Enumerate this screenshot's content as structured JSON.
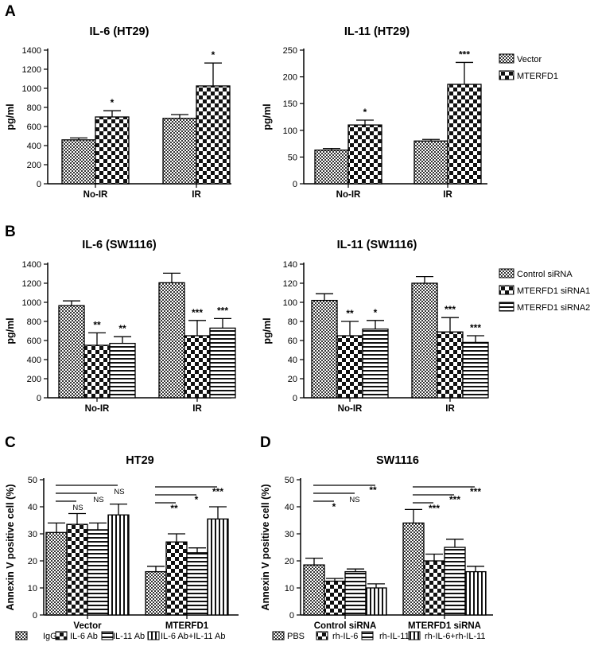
{
  "panel_letters": [
    "A",
    "B",
    "C",
    "D"
  ],
  "chart_data": [
    {
      "id": "a-il6",
      "type": "bar",
      "title": "IL-6 (HT29)",
      "ylabel": "pg/ml",
      "ylim": [
        0,
        1400
      ],
      "yticks": [
        0,
        200,
        400,
        600,
        800,
        1000,
        1200,
        1400
      ],
      "categories": [
        "No-IR",
        "IR"
      ],
      "series": [
        {
          "name": "Vector",
          "values": [
            460,
            685
          ],
          "errors": [
            20,
            40
          ],
          "significance": [
            "",
            ""
          ]
        },
        {
          "name": "MTERFD1",
          "values": [
            700,
            1025
          ],
          "errors": [
            65,
            240
          ],
          "significance": [
            "*",
            "*"
          ]
        }
      ]
    },
    {
      "id": "a-il11",
      "type": "bar",
      "title": "IL-11 (HT29)",
      "ylabel": "pg/ml",
      "ylim": [
        0,
        250
      ],
      "yticks": [
        0,
        50,
        100,
        150,
        200,
        250
      ],
      "categories": [
        "No-IR",
        "IR"
      ],
      "series": [
        {
          "name": "Vector",
          "values": [
            63,
            80
          ],
          "errors": [
            3,
            3
          ],
          "significance": [
            "",
            ""
          ]
        },
        {
          "name": "MTERFD1",
          "values": [
            110,
            186
          ],
          "errors": [
            9,
            41
          ],
          "significance": [
            "*",
            "***"
          ]
        }
      ],
      "legend": [
        "Vector",
        "MTERFD1"
      ]
    },
    {
      "id": "b-il6",
      "type": "bar",
      "title": "IL-6 (SW1116)",
      "ylabel": "pg/ml",
      "ylim": [
        0,
        1400
      ],
      "yticks": [
        0,
        200,
        400,
        600,
        800,
        1000,
        1200,
        1400
      ],
      "categories": [
        "No-IR",
        "IR"
      ],
      "series": [
        {
          "name": "Control siRNA",
          "values": [
            965,
            1205
          ],
          "errors": [
            50,
            100
          ],
          "significance": [
            "",
            ""
          ]
        },
        {
          "name": "MTERFD1 siRNA1",
          "values": [
            550,
            650
          ],
          "errors": [
            130,
            160
          ],
          "significance": [
            "**",
            "***"
          ]
        },
        {
          "name": "MTERFD1 siRNA2",
          "values": [
            570,
            730
          ],
          "errors": [
            70,
            100
          ],
          "significance": [
            "**",
            "***"
          ]
        }
      ]
    },
    {
      "id": "b-il11",
      "type": "bar",
      "title": "IL-11 (SW1116)",
      "ylabel": "pg/ml",
      "ylim": [
        0,
        140
      ],
      "yticks": [
        0,
        20,
        40,
        60,
        80,
        100,
        120,
        140
      ],
      "categories": [
        "No-IR",
        "IR"
      ],
      "series": [
        {
          "name": "Control siRNA",
          "values": [
            102,
            120
          ],
          "errors": [
            7,
            7
          ],
          "significance": [
            "",
            ""
          ]
        },
        {
          "name": "MTERFD1 siRNA1",
          "values": [
            65,
            69
          ],
          "errors": [
            15,
            15
          ],
          "significance": [
            "**",
            "***"
          ]
        },
        {
          "name": "MTERFD1 siRNA2",
          "values": [
            72,
            58
          ],
          "errors": [
            9,
            7
          ],
          "significance": [
            "*",
            "***"
          ]
        }
      ],
      "legend": [
        "Control siRNA",
        "MTERFD1 siRNA1",
        "MTERFD1 siRNA2"
      ]
    },
    {
      "id": "c",
      "type": "bar",
      "title": "HT29",
      "ylabel": "Annexin V positive cell (%)",
      "ylim": [
        0,
        50
      ],
      "yticks": [
        0,
        10,
        20,
        30,
        40,
        50
      ],
      "categories": [
        "Vector",
        "MTERFD1"
      ],
      "series": [
        {
          "name": "IgG",
          "values": [
            30.5,
            16
          ],
          "errors": [
            3.5,
            2
          ]
        },
        {
          "name": "IL-6 Ab",
          "values": [
            33.5,
            27
          ],
          "errors": [
            4,
            3
          ]
        },
        {
          "name": "IL-11 Ab",
          "values": [
            31.5,
            23
          ],
          "errors": [
            2.5,
            1.8
          ]
        },
        {
          "name": "IL-6 Ab+IL-11 Ab",
          "values": [
            37,
            35.5
          ],
          "errors": [
            4,
            4.5
          ]
        }
      ],
      "comparisons": [
        {
          "label": "NS",
          "groups": [
            "Vector",
            "Vector"
          ]
        },
        {
          "label": "NS",
          "groups": [
            "Vector",
            "Vector"
          ]
        },
        {
          "label": "NS",
          "groups": [
            "Vector",
            "Vector"
          ]
        },
        {
          "label": "***",
          "groups": [
            "MTERFD1",
            "MTERFD1"
          ]
        },
        {
          "label": "*",
          "groups": [
            "MTERFD1",
            "MTERFD1"
          ]
        },
        {
          "label": "**",
          "groups": [
            "MTERFD1",
            "MTERFD1"
          ]
        }
      ],
      "legend": [
        "IgG",
        "IL-6 Ab",
        "IL-11 Ab",
        "IL-6 Ab+IL-11 Ab"
      ]
    },
    {
      "id": "d",
      "type": "bar",
      "title": "SW1116",
      "ylabel": "Annexin V positive cell (%)",
      "ylim": [
        0,
        50
      ],
      "yticks": [
        0,
        10,
        20,
        30,
        40,
        50
      ],
      "categories": [
        "Control siRNA",
        "MTERFD1 siRNA"
      ],
      "series": [
        {
          "name": "PBS",
          "values": [
            18.5,
            34
          ],
          "errors": [
            2.5,
            5
          ]
        },
        {
          "name": "rh-IL-6",
          "values": [
            12.5,
            20
          ],
          "errors": [
            1,
            2.5
          ]
        },
        {
          "name": "rh-IL-11",
          "values": [
            16,
            25
          ],
          "errors": [
            1,
            3
          ]
        },
        {
          "name": "rh-IL-6+rh-IL-11",
          "values": [
            10,
            16
          ],
          "errors": [
            1.5,
            2
          ]
        }
      ],
      "comparisons": [
        {
          "label": "**",
          "groups": [
            "Control siRNA",
            "Control siRNA"
          ]
        },
        {
          "label": "NS",
          "groups": [
            "Control siRNA",
            "Control siRNA"
          ]
        },
        {
          "label": "*",
          "groups": [
            "Control siRNA",
            "Control siRNA"
          ]
        },
        {
          "label": "***",
          "groups": [
            "MTERFD1 siRNA",
            "MTERFD1 siRNA"
          ]
        },
        {
          "label": "***",
          "groups": [
            "MTERFD1 siRNA",
            "MTERFD1 siRNA"
          ]
        },
        {
          "label": "***",
          "groups": [
            "MTERFD1 siRNA",
            "MTERFD1 siRNA"
          ]
        }
      ],
      "legend": [
        "PBS",
        "rh-IL-6",
        "rh-IL-11",
        "rh-IL-6+rh-IL-11"
      ]
    }
  ]
}
